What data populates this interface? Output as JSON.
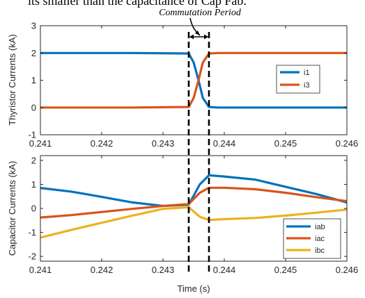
{
  "header": {
    "top_text": "its smaller than the capacitance of Cap Fab.",
    "annotation": "Commutation Period"
  },
  "colors": {
    "blue": "#0072BD",
    "orange": "#D95319",
    "yellow": "#EDB120"
  },
  "commutation": {
    "start": 0.24342,
    "end": 0.24375
  },
  "chart_data": [
    {
      "type": "line",
      "ylabel": "Thyristor Currents (kA)",
      "xlabel": "",
      "xlim": [
        0.241,
        0.246
      ],
      "ylim": [
        -1,
        3
      ],
      "xticks": [
        "0.241",
        "0.242",
        "0.243",
        "0.244",
        "0.245",
        "0.246"
      ],
      "yticks": [
        "-1",
        "0",
        "1",
        "2",
        "3"
      ],
      "grid": false,
      "legend": "right",
      "series": [
        {
          "name": "i1",
          "color": "#0072BD",
          "x": [
            0.241,
            0.2425,
            0.24342,
            0.2435,
            0.24358,
            0.24365,
            0.24375,
            0.2439,
            0.246
          ],
          "y": [
            2.0,
            2.0,
            1.98,
            1.65,
            1.0,
            0.35,
            0.02,
            0.0,
            0.0
          ]
        },
        {
          "name": "i3",
          "color": "#D95319",
          "x": [
            0.241,
            0.2425,
            0.24342,
            0.2435,
            0.24358,
            0.24365,
            0.24375,
            0.2439,
            0.246
          ],
          "y": [
            0.0,
            0.0,
            0.02,
            0.35,
            1.0,
            1.65,
            1.98,
            2.0,
            2.0
          ]
        }
      ]
    },
    {
      "type": "line",
      "ylabel": "Capacitor Currents (kA)",
      "xlabel": "Time (s)",
      "xlim": [
        0.241,
        0.246
      ],
      "ylim": [
        -2.2,
        2.2
      ],
      "xticks": [
        "0.241",
        "0.242",
        "0.243",
        "0.244",
        "0.245",
        "0.246"
      ],
      "yticks": [
        "-2",
        "-1",
        "0",
        "1",
        "2"
      ],
      "grid": false,
      "legend": "bottom-right",
      "series": [
        {
          "name": "iab",
          "color": "#0072BD",
          "x": [
            0.241,
            0.2415,
            0.242,
            0.2425,
            0.243,
            0.24342,
            0.2436,
            0.24375,
            0.244,
            0.2445,
            0.245,
            0.2455,
            0.246
          ],
          "y": [
            0.85,
            0.7,
            0.48,
            0.25,
            0.1,
            0.15,
            1.0,
            1.38,
            1.33,
            1.2,
            0.9,
            0.6,
            0.25
          ]
        },
        {
          "name": "iac",
          "color": "#D95319",
          "x": [
            0.241,
            0.2415,
            0.242,
            0.2425,
            0.243,
            0.24342,
            0.2436,
            0.24375,
            0.244,
            0.2445,
            0.245,
            0.2455,
            0.246
          ],
          "y": [
            -0.38,
            -0.28,
            -0.15,
            -0.02,
            0.1,
            0.18,
            0.65,
            0.86,
            0.86,
            0.8,
            0.65,
            0.47,
            0.3
          ]
        },
        {
          "name": "ibc",
          "color": "#EDB120",
          "x": [
            0.241,
            0.2415,
            0.242,
            0.2425,
            0.243,
            0.24342,
            0.2436,
            0.24375,
            0.244,
            0.2445,
            0.245,
            0.2455,
            0.246
          ],
          "y": [
            -1.22,
            -0.9,
            -0.6,
            -0.3,
            -0.02,
            0.05,
            -0.35,
            -0.48,
            -0.45,
            -0.4,
            -0.3,
            -0.18,
            -0.05
          ]
        }
      ]
    }
  ]
}
